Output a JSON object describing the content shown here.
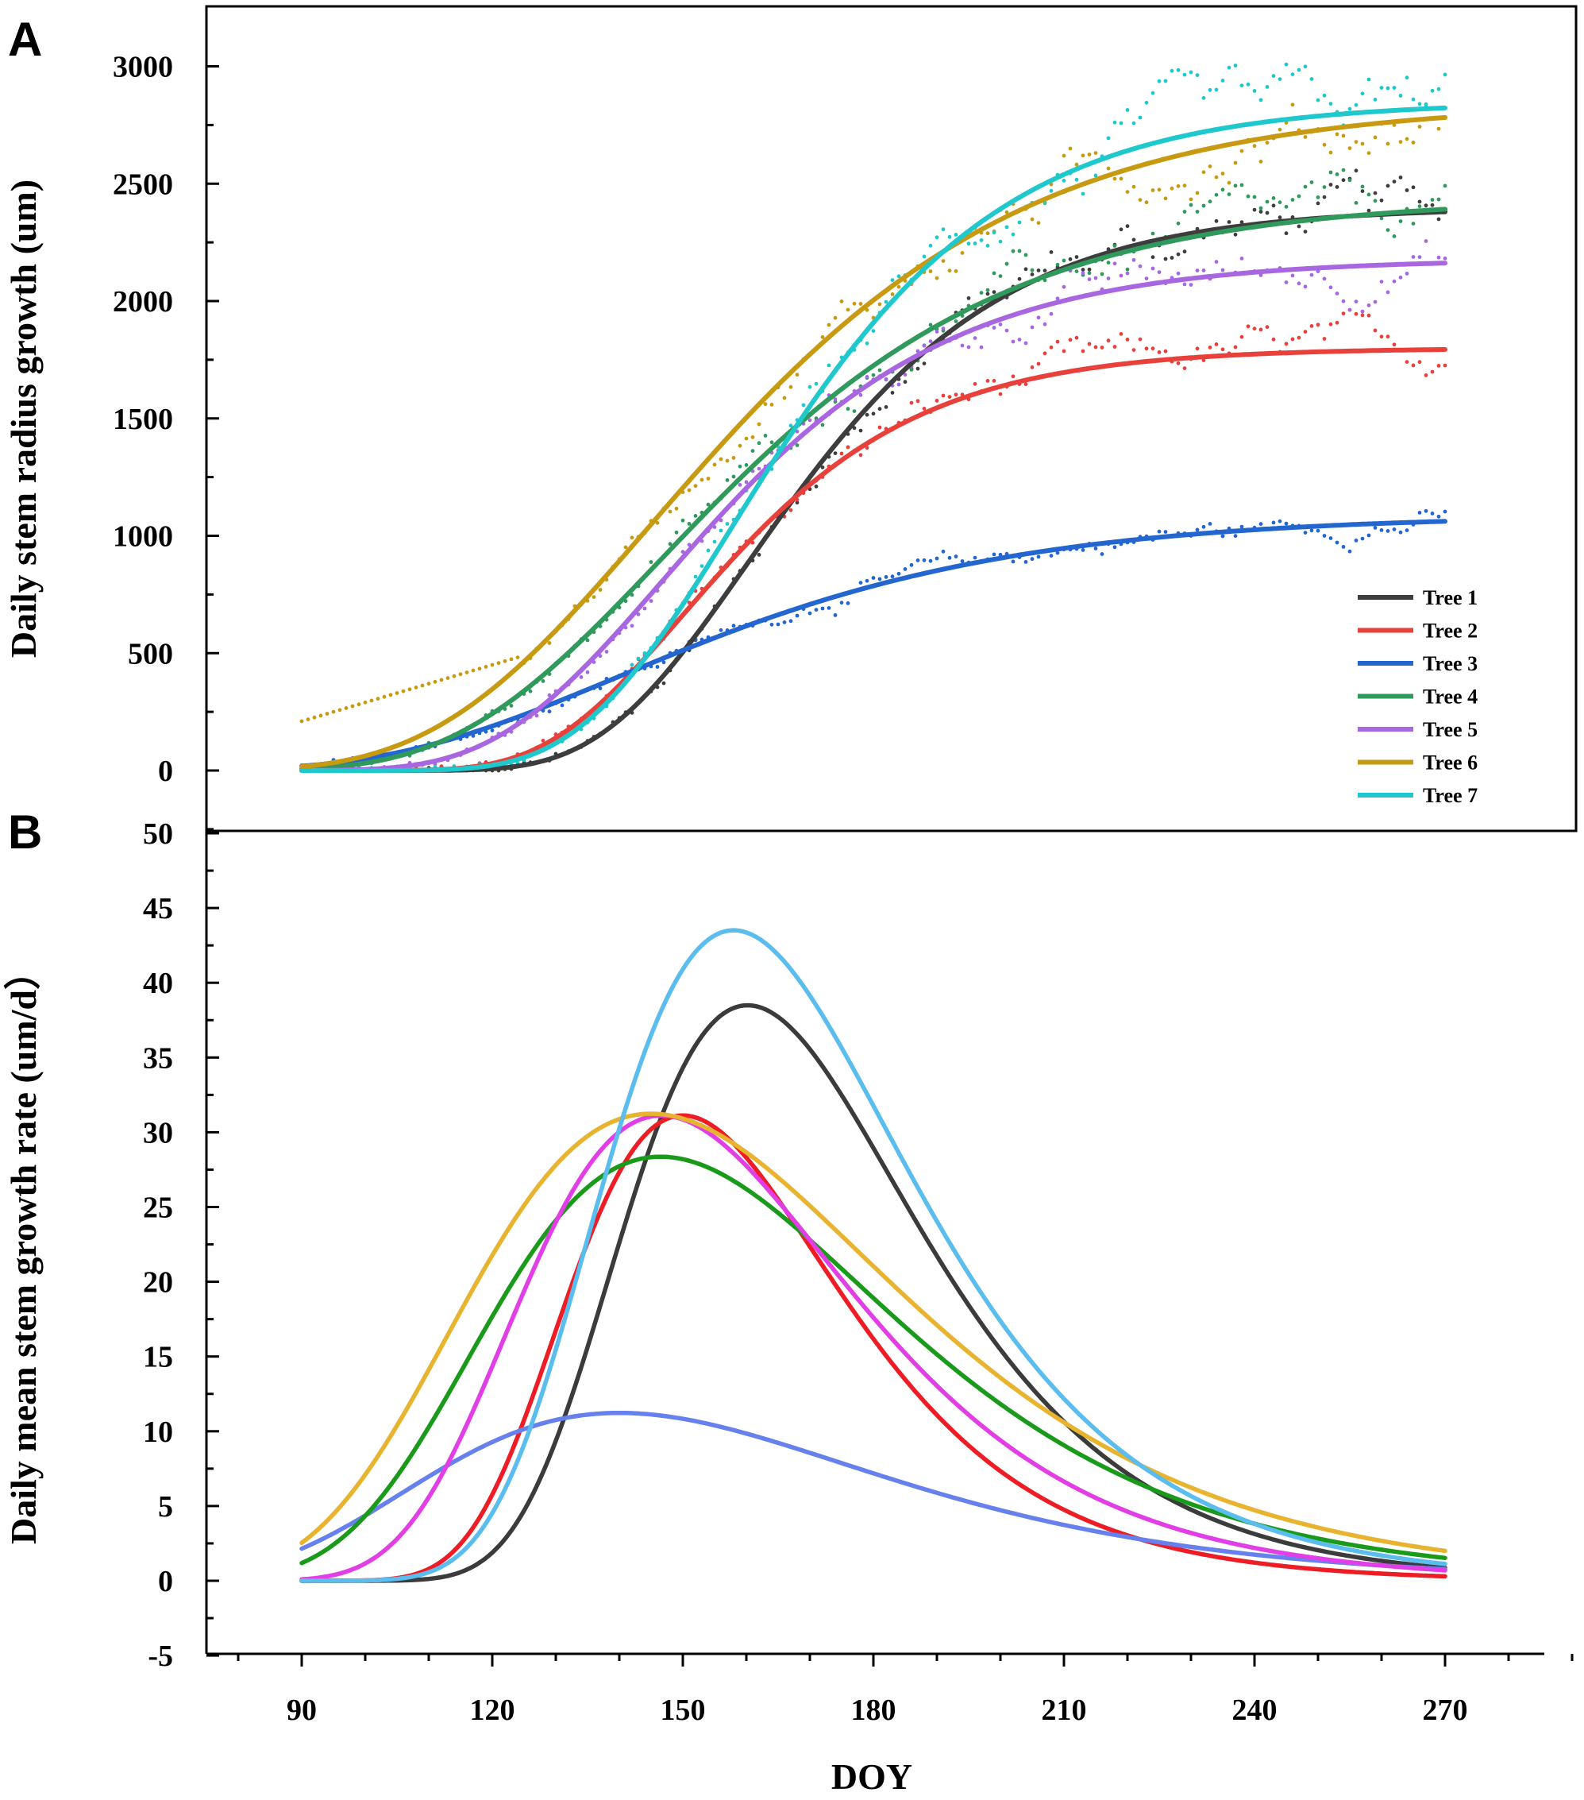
{
  "chart_data": [
    {
      "panel": "A",
      "type": "line",
      "ylabel": "Daily stem radius growth (um)",
      "xlabel": "DOY",
      "xlim": [
        80,
        290
      ],
      "ylim": [
        -250,
        3250
      ],
      "yticks": [
        0,
        500,
        1000,
        1500,
        2000,
        2500,
        3000
      ],
      "model": "gompertz",
      "legend_position": "bottom-right",
      "series": [
        {
          "name": "Tree 1",
          "color": "#3d3d3d",
          "A": 2400,
          "tc": 160.2,
          "k": 0.0436
        },
        {
          "name": "Tree 2",
          "color": "#e8413c",
          "A": 1800,
          "tc": 150.0,
          "k": 0.047
        },
        {
          "name": "Tree 3",
          "color": "#2366d0",
          "A": 1090,
          "tc": 140.0,
          "k": 0.028
        },
        {
          "name": "Tree 4",
          "color": "#2f9a5c",
          "A": 2440,
          "tc": 146.5,
          "k": 0.0316
        },
        {
          "name": "Tree 5",
          "color": "#a866e0",
          "A": 2180,
          "tc": 146.6,
          "k": 0.0388
        },
        {
          "name": "Tree 6",
          "color": "#c79a12",
          "A": 2850,
          "tc": 145.0,
          "k": 0.0298
        },
        {
          "name": "Tree 7",
          "color": "#1ec8cc",
          "A": 2850,
          "tc": 158.0,
          "k": 0.0415
        }
      ]
    },
    {
      "panel": "B",
      "type": "line",
      "ylabel": "Daily mean stem growth rate (um/d）",
      "xlabel": "DOY",
      "xlim": [
        80,
        290
      ],
      "ylim": [
        -5,
        50
      ],
      "yticks": [
        -5,
        0,
        5,
        10,
        15,
        20,
        25,
        30,
        35,
        40,
        45,
        50
      ],
      "xticks": [
        90,
        120,
        150,
        180,
        210,
        240,
        270
      ],
      "model": "gompertz-derivative",
      "series": [
        {
          "name": "Tree 1",
          "color": "#3b3b3b",
          "A": 2400,
          "tc": 160.2,
          "k": 0.0436
        },
        {
          "name": "Tree 2",
          "color": "#ee1c24",
          "A": 1800,
          "tc": 150.0,
          "k": 0.047
        },
        {
          "name": "Tree 3",
          "color": "#6680ee",
          "A": 1090,
          "tc": 140.0,
          "k": 0.028
        },
        {
          "name": "Tree 4",
          "color": "#1a9a1a",
          "A": 2440,
          "tc": 146.5,
          "k": 0.0316
        },
        {
          "name": "Tree 5",
          "color": "#e23ee6",
          "A": 2180,
          "tc": 146.6,
          "k": 0.0388
        },
        {
          "name": "Tree 6",
          "color": "#e8b430",
          "A": 2850,
          "tc": 145.0,
          "k": 0.0298
        },
        {
          "name": "Tree 7",
          "color": "#5bbcee",
          "A": 2850,
          "tc": 158.0,
          "k": 0.0415
        }
      ]
    }
  ],
  "peak_rates_um_per_d": {
    "Tree 1": 38.5,
    "Tree 2": 31.1,
    "Tree 3": 11.2,
    "Tree 4": 28.4,
    "Tree 5": 31.1,
    "Tree 6": 31.3,
    "Tree 7": 43.5
  }
}
